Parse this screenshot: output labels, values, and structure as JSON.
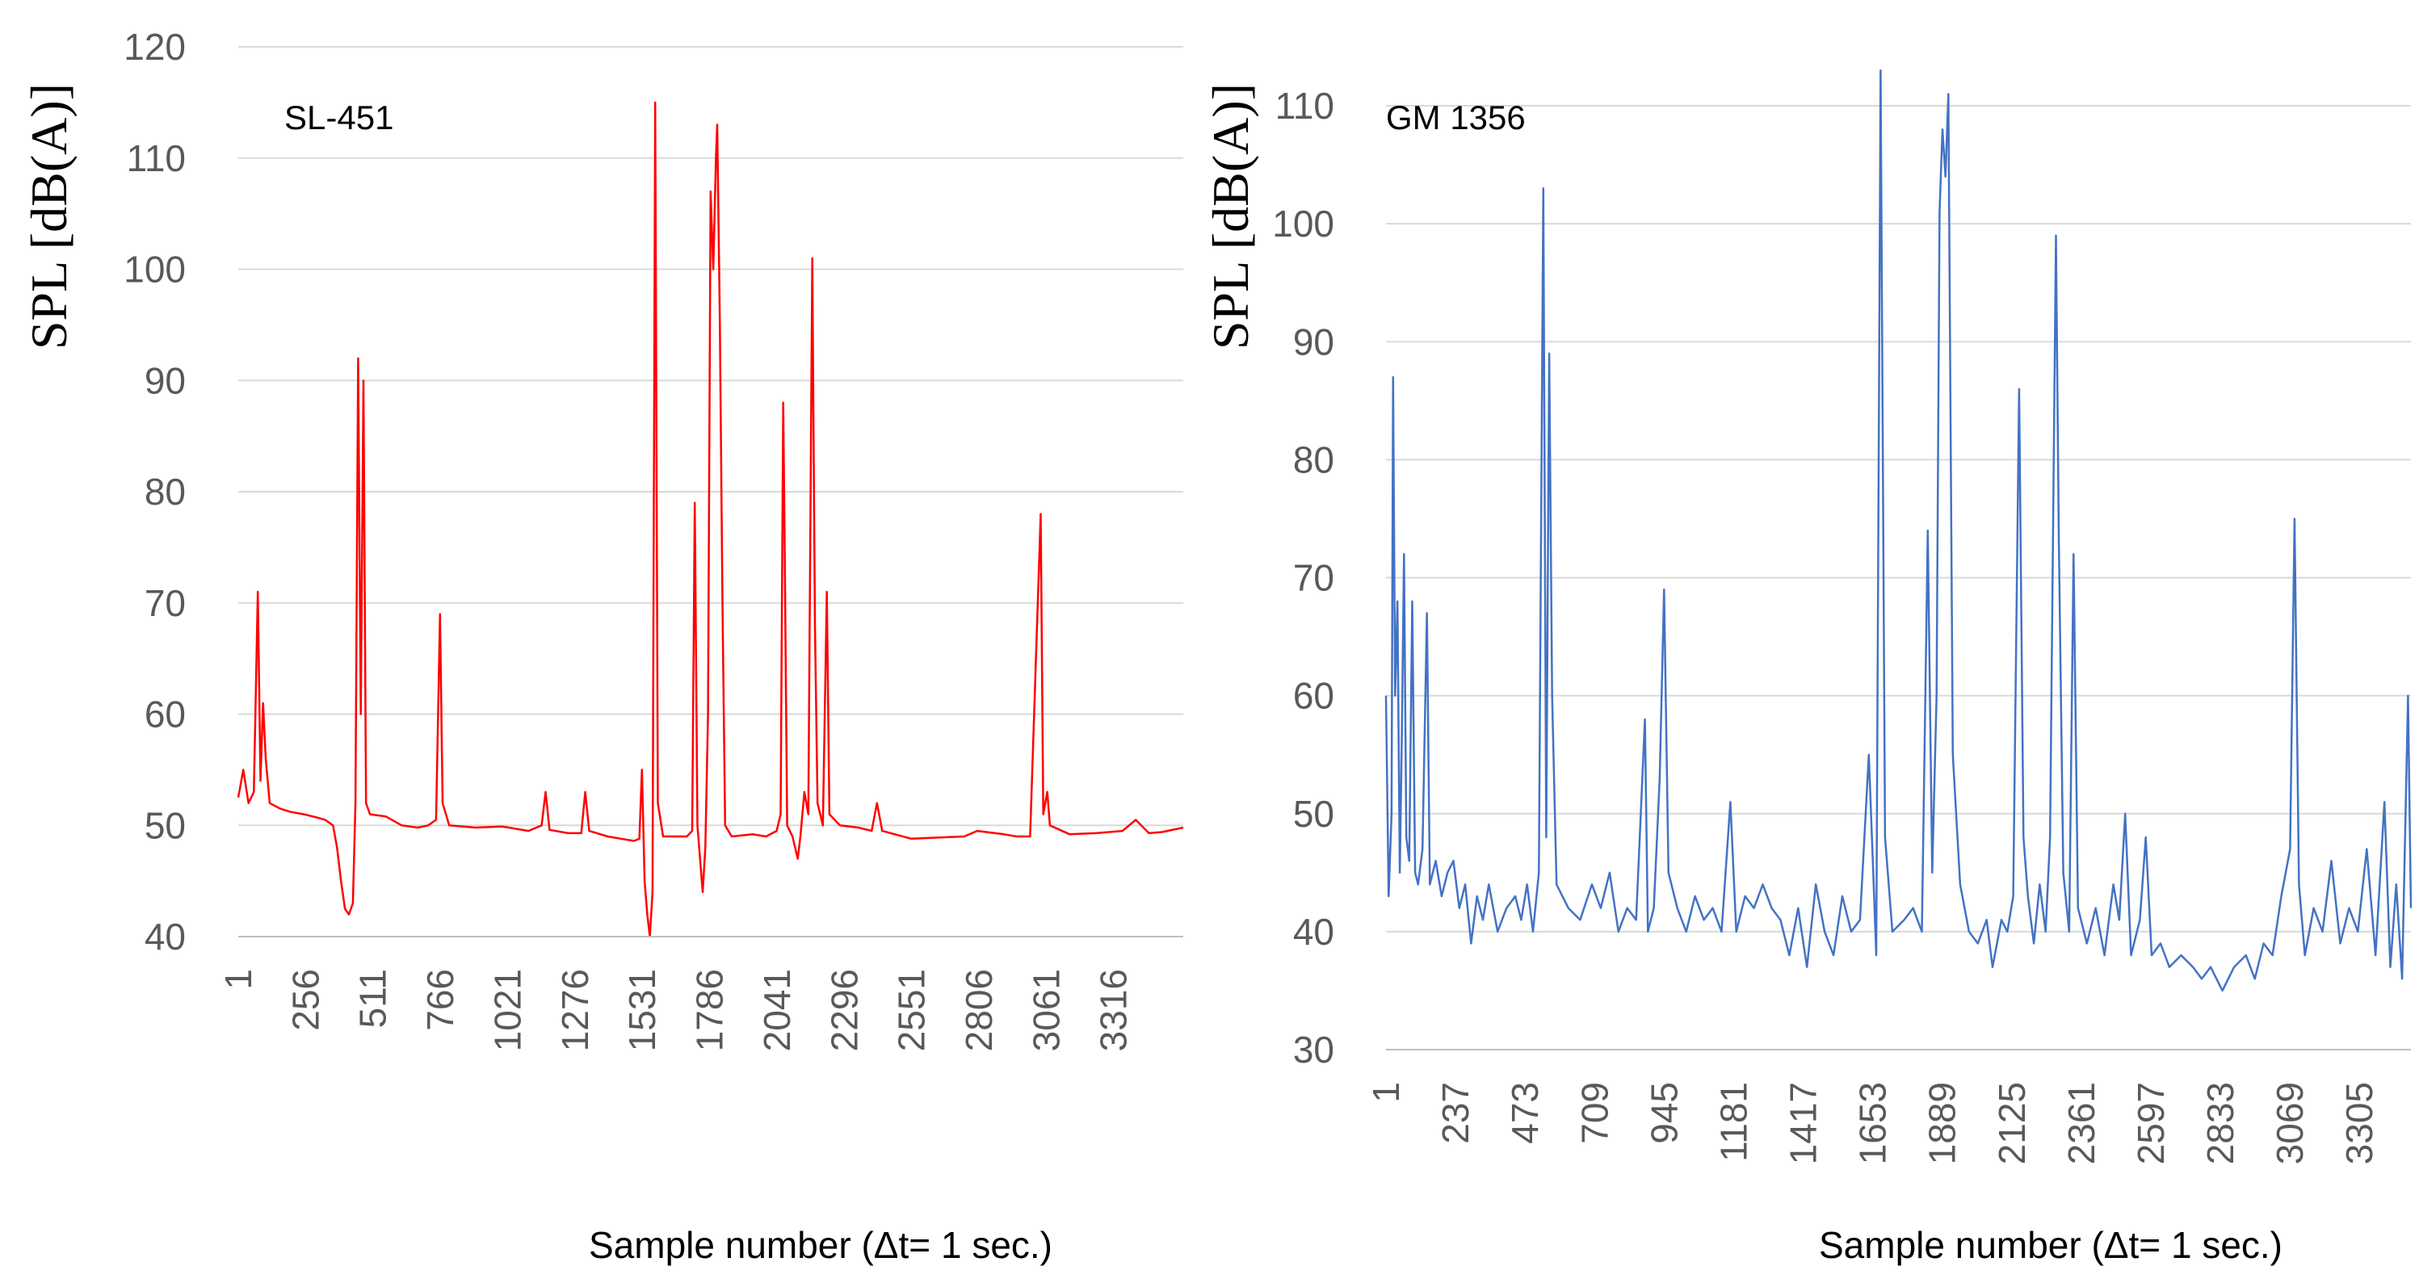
{
  "chart_data": [
    {
      "type": "line",
      "title": "SL-451",
      "xlabel": "Sample number (Δt= 1 sec.)",
      "ylabel": "SPL [dB(A)]",
      "ylim": [
        40,
        120
      ],
      "yticks": [
        "40",
        "50",
        "60",
        "70",
        "80",
        "90",
        "100",
        "110",
        "120"
      ],
      "xlim": [
        1,
        3580
      ],
      "xticks": [
        "1",
        "256",
        "511",
        "766",
        "1021",
        "1276",
        "1531",
        "1786",
        "2041",
        "2296",
        "2551",
        "2806",
        "3061",
        "3316"
      ],
      "grid": true,
      "series": [
        {
          "name": "SL-451",
          "color": "#ff0000",
          "points": [
            [
              1,
              52.5
            ],
            [
              20,
              55
            ],
            [
              40,
              52
            ],
            [
              60,
              53
            ],
            [
              75,
              71
            ],
            [
              85,
              54
            ],
            [
              95,
              61
            ],
            [
              105,
              56
            ],
            [
              120,
              52
            ],
            [
              160,
              51.5
            ],
            [
              200,
              51.2
            ],
            [
              250,
              51
            ],
            [
              300,
              50.7
            ],
            [
              330,
              50.5
            ],
            [
              360,
              50
            ],
            [
              375,
              48
            ],
            [
              390,
              45
            ],
            [
              405,
              42.5
            ],
            [
              420,
              42
            ],
            [
              435,
              43
            ],
            [
              445,
              52
            ],
            [
              455,
              92
            ],
            [
              465,
              60
            ],
            [
              475,
              90
            ],
            [
              485,
              52
            ],
            [
              500,
              51
            ],
            [
              560,
              50.8
            ],
            [
              620,
              50
            ],
            [
              680,
              49.8
            ],
            [
              720,
              50
            ],
            [
              750,
              50.5
            ],
            [
              765,
              69
            ],
            [
              775,
              52
            ],
            [
              800,
              50
            ],
            [
              900,
              49.8
            ],
            [
              1000,
              49.9
            ],
            [
              1100,
              49.5
            ],
            [
              1150,
              50
            ],
            [
              1165,
              53
            ],
            [
              1180,
              49.6
            ],
            [
              1250,
              49.3
            ],
            [
              1300,
              49.3
            ],
            [
              1315,
              53
            ],
            [
              1330,
              49.5
            ],
            [
              1400,
              49
            ],
            [
              1450,
              48.8
            ],
            [
              1500,
              48.6
            ],
            [
              1520,
              48.8
            ],
            [
              1530,
              55
            ],
            [
              1540,
              45
            ],
            [
              1550,
              42
            ],
            [
              1560,
              40
            ],
            [
              1570,
              44
            ],
            [
              1580,
              115
            ],
            [
              1590,
              52
            ],
            [
              1610,
              49
            ],
            [
              1650,
              49
            ],
            [
              1700,
              49
            ],
            [
              1720,
              49.5
            ],
            [
              1730,
              79
            ],
            [
              1740,
              50
            ],
            [
              1760,
              44
            ],
            [
              1770,
              48
            ],
            [
              1780,
              60
            ],
            [
              1790,
              107
            ],
            [
              1800,
              100
            ],
            [
              1810,
              110
            ],
            [
              1815,
              113
            ],
            [
              1825,
              95
            ],
            [
              1835,
              70
            ],
            [
              1845,
              50
            ],
            [
              1870,
              49
            ],
            [
              1950,
              49.2
            ],
            [
              2000,
              49
            ],
            [
              2040,
              49.5
            ],
            [
              2055,
              51
            ],
            [
              2065,
              88
            ],
            [
              2070,
              76
            ],
            [
              2080,
              50
            ],
            [
              2100,
              49
            ],
            [
              2120,
              47
            ],
            [
              2130,
              49
            ],
            [
              2145,
              53
            ],
            [
              2160,
              51
            ],
            [
              2175,
              101
            ],
            [
              2185,
              68
            ],
            [
              2195,
              52
            ],
            [
              2215,
              50
            ],
            [
              2230,
              71
            ],
            [
              2240,
              51
            ],
            [
              2280,
              50
            ],
            [
              2350,
              49.8
            ],
            [
              2400,
              49.5
            ],
            [
              2420,
              52
            ],
            [
              2440,
              49.5
            ],
            [
              2550,
              48.8
            ],
            [
              2650,
              48.9
            ],
            [
              2750,
              49
            ],
            [
              2800,
              49.5
            ],
            [
              2900,
              49.2
            ],
            [
              2950,
              49
            ],
            [
              3000,
              49
            ],
            [
              3040,
              78
            ],
            [
              3050,
              51
            ],
            [
              3065,
              53
            ],
            [
              3075,
              50
            ],
            [
              3150,
              49.2
            ],
            [
              3250,
              49.3
            ],
            [
              3300,
              49.4
            ],
            [
              3350,
              49.5
            ],
            [
              3400,
              50.5
            ],
            [
              3450,
              49.3
            ],
            [
              3500,
              49.4
            ],
            [
              3580,
              49.8
            ]
          ]
        }
      ]
    },
    {
      "type": "line",
      "title": "GM 1356",
      "xlabel": "Sample number (Δt= 1 sec.)",
      "ylabel": "SPL [dB(A)]",
      "ylim": [
        30,
        115
      ],
      "yticks": [
        "30",
        "40",
        "50",
        "60",
        "70",
        "80",
        "90",
        "100",
        "110"
      ],
      "xlim": [
        1,
        3480
      ],
      "xticks": [
        "1",
        "237",
        "473",
        "709",
        "945",
        "1181",
        "1417",
        "1653",
        "1889",
        "2125",
        "2361",
        "2597",
        "2833",
        "3069",
        "3305"
      ],
      "grid": true,
      "series": [
        {
          "name": "GM 1356",
          "color": "#4472c4",
          "points": [
            [
              1,
              60
            ],
            [
              10,
              43
            ],
            [
              20,
              50
            ],
            [
              25,
              87
            ],
            [
              32,
              60
            ],
            [
              40,
              68
            ],
            [
              48,
              45
            ],
            [
              55,
              57
            ],
            [
              62,
              72
            ],
            [
              70,
              48
            ],
            [
              80,
              46
            ],
            [
              90,
              68
            ],
            [
              100,
              45
            ],
            [
              110,
              44
            ],
            [
              125,
              47
            ],
            [
              140,
              67
            ],
            [
              150,
              44
            ],
            [
              170,
              46
            ],
            [
              190,
              43
            ],
            [
              210,
              45
            ],
            [
              230,
              46
            ],
            [
              250,
              42
            ],
            [
              270,
              44
            ],
            [
              290,
              39
            ],
            [
              310,
              43
            ],
            [
              330,
              41
            ],
            [
              350,
              44
            ],
            [
              380,
              40
            ],
            [
              410,
              42
            ],
            [
              440,
              43
            ],
            [
              460,
              41
            ],
            [
              480,
              44
            ],
            [
              500,
              40
            ],
            [
              520,
              45
            ],
            [
              535,
              103
            ],
            [
              545,
              48
            ],
            [
              555,
              89
            ],
            [
              565,
              60
            ],
            [
              580,
              44
            ],
            [
              620,
              42
            ],
            [
              660,
              41
            ],
            [
              700,
              44
            ],
            [
              730,
              42
            ],
            [
              760,
              45
            ],
            [
              790,
              40
            ],
            [
              820,
              42
            ],
            [
              850,
              41
            ],
            [
              880,
              58
            ],
            [
              890,
              40
            ],
            [
              910,
              42
            ],
            [
              930,
              53
            ],
            [
              945,
              69
            ],
            [
              960,
              45
            ],
            [
              990,
              42
            ],
            [
              1020,
              40
            ],
            [
              1050,
              43
            ],
            [
              1080,
              41
            ],
            [
              1110,
              42
            ],
            [
              1140,
              40
            ],
            [
              1170,
              51
            ],
            [
              1190,
              40
            ],
            [
              1220,
              43
            ],
            [
              1250,
              42
            ],
            [
              1280,
              44
            ],
            [
              1310,
              42
            ],
            [
              1340,
              41
            ],
            [
              1370,
              38
            ],
            [
              1400,
              42
            ],
            [
              1430,
              37
            ],
            [
              1460,
              44
            ],
            [
              1490,
              40
            ],
            [
              1520,
              38
            ],
            [
              1550,
              43
            ],
            [
              1580,
              40
            ],
            [
              1610,
              41
            ],
            [
              1640,
              55
            ],
            [
              1655,
              45
            ],
            [
              1665,
              38
            ],
            [
              1680,
              113
            ],
            [
              1695,
              48
            ],
            [
              1720,
              40
            ],
            [
              1760,
              41
            ],
            [
              1790,
              42
            ],
            [
              1820,
              40
            ],
            [
              1840,
              74
            ],
            [
              1855,
              45
            ],
            [
              1870,
              60
            ],
            [
              1880,
              101
            ],
            [
              1890,
              108
            ],
            [
              1900,
              104
            ],
            [
              1910,
              111
            ],
            [
              1925,
              55
            ],
            [
              1950,
              44
            ],
            [
              1980,
              40
            ],
            [
              2010,
              39
            ],
            [
              2040,
              41
            ],
            [
              2060,
              37
            ],
            [
              2090,
              41
            ],
            [
              2110,
              40
            ],
            [
              2130,
              43
            ],
            [
              2150,
              86
            ],
            [
              2165,
              48
            ],
            [
              2180,
              43
            ],
            [
              2200,
              39
            ],
            [
              2220,
              44
            ],
            [
              2240,
              40
            ],
            [
              2255,
              48
            ],
            [
              2275,
              99
            ],
            [
              2285,
              73
            ],
            [
              2300,
              45
            ],
            [
              2320,
              40
            ],
            [
              2335,
              72
            ],
            [
              2350,
              42
            ],
            [
              2380,
              39
            ],
            [
              2410,
              42
            ],
            [
              2440,
              38
            ],
            [
              2470,
              44
            ],
            [
              2490,
              41
            ],
            [
              2510,
              50
            ],
            [
              2530,
              38
            ],
            [
              2560,
              41
            ],
            [
              2580,
              48
            ],
            [
              2600,
              38
            ],
            [
              2630,
              39
            ],
            [
              2660,
              37
            ],
            [
              2700,
              38
            ],
            [
              2740,
              37
            ],
            [
              2770,
              36
            ],
            [
              2800,
              37
            ],
            [
              2840,
              35
            ],
            [
              2880,
              37
            ],
            [
              2920,
              38
            ],
            [
              2950,
              36
            ],
            [
              2980,
              39
            ],
            [
              3010,
              38
            ],
            [
              3040,
              43
            ],
            [
              3070,
              47
            ],
            [
              3085,
              75
            ],
            [
              3100,
              44
            ],
            [
              3120,
              38
            ],
            [
              3150,
              42
            ],
            [
              3180,
              40
            ],
            [
              3210,
              46
            ],
            [
              3240,
              39
            ],
            [
              3270,
              42
            ],
            [
              3300,
              40
            ],
            [
              3330,
              47
            ],
            [
              3360,
              38
            ],
            [
              3390,
              51
            ],
            [
              3410,
              37
            ],
            [
              3430,
              44
            ],
            [
              3450,
              36
            ],
            [
              3470,
              60
            ],
            [
              3480,
              42
            ]
          ]
        }
      ]
    }
  ]
}
